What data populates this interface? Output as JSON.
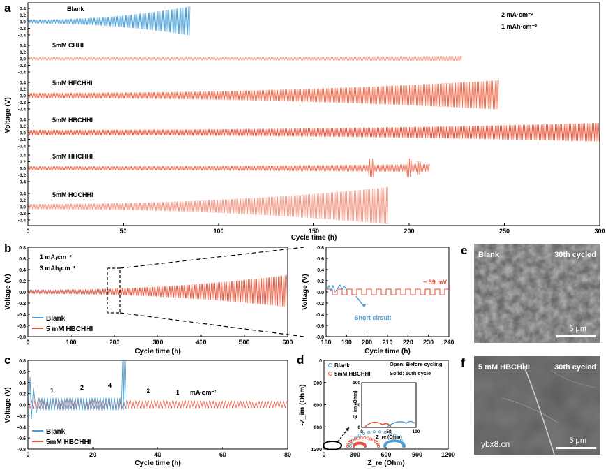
{
  "colors": {
    "blue": "#4a9fd6",
    "red": "#e8543a",
    "pink": "#f08a72",
    "salmon": "#ee7054"
  },
  "panels": {
    "a": {
      "letter": "a",
      "ylabel": "Voltage (V)",
      "xlabel": "Cycle time (h)",
      "note1": "2 mA·cm⁻²",
      "note2": "1 mAh·cm⁻²",
      "traces": [
        {
          "label": "Blank",
          "end": 85,
          "color": "#4a9fd6"
        },
        {
          "label": "5mM CHHI",
          "end": 228,
          "color": "#f2a08a"
        },
        {
          "label": "5mM HECHHI",
          "end": 247,
          "color": "#ee6a4c"
        },
        {
          "label": "5mM HBCHHI",
          "end": 300,
          "color": "#e8543a"
        },
        {
          "label": "5mM HHCHHI",
          "end": 211,
          "color": "#ee7054"
        },
        {
          "label": "5mM HOCHHI",
          "end": 189,
          "color": "#f29582"
        }
      ],
      "yticks": [
        "0.4",
        "0.2",
        "0.0",
        "-0.2",
        "-0.4"
      ],
      "xticks": [
        "0",
        "50",
        "100",
        "150",
        "200",
        "250",
        "300"
      ]
    },
    "b": {
      "letter": "b",
      "ylabel": "Voltage (V)",
      "xlabel": "Cycle time (h)",
      "note1": "1 mA¡cm⁻²",
      "note2": "3 mAh¡cm⁻²",
      "legend": [
        "Blank",
        "5 mM HBCHHI"
      ],
      "xticks": [
        "0",
        "100",
        "200",
        "300",
        "400",
        "500",
        "600"
      ],
      "yticks": [
        "0.8",
        "0.6",
        "0.4",
        "0.2",
        "0.0",
        "-0.2",
        "-0.4",
        "-0.6",
        "-0.8"
      ]
    },
    "b_inset": {
      "ylabel": "Voltage (V)",
      "xlabel": "Cycle time (h)",
      "annotation": "~ 59 mV",
      "short_circuit": "Short circuit",
      "xticks": [
        "180",
        "190",
        "200",
        "210",
        "220",
        "230",
        "240"
      ],
      "yticks": [
        "0.8",
        "0.6",
        "0.4",
        "0.2",
        "0.0",
        "-0.2",
        "-0.4",
        "-0.6",
        "-0.8"
      ]
    },
    "c": {
      "letter": "c",
      "ylabel": "Voltage (V)",
      "xlabel": "Cycle time (h)",
      "legend": [
        "Blank",
        "5mM HBCHHI"
      ],
      "rate_labels": [
        "1",
        "2",
        "4",
        "2",
        "1",
        "mA·cm⁻²"
      ],
      "xticks": [
        "0",
        "20",
        "40",
        "60",
        "80"
      ],
      "yticks": [
        "0.8",
        "0.6",
        "0.4",
        "0.2",
        "0.0",
        "-0.2",
        "-0.4",
        "-0.6",
        "-0.8"
      ]
    },
    "d": {
      "letter": "d",
      "ylabel": "-Z_im (Ohm)",
      "xlabel": "Z_re (Ohm)",
      "legend": [
        "Blank",
        "5mM HBCHHI"
      ],
      "note1": "Open: Before cycling",
      "note2": "Solid: 50th cycle",
      "xticks": [
        "0",
        "300",
        "600",
        "900",
        "1200"
      ],
      "yticks": [
        "0",
        "300",
        "600",
        "900",
        "1200"
      ],
      "inset_xticks": [
        "0",
        "50",
        "100"
      ],
      "inset_yticks": [
        "0",
        "50",
        "100"
      ],
      "inset_xlabel": "Z_re (Ohm)",
      "inset_ylabel": "-Z_im (Ohm)"
    },
    "e": {
      "letter": "e",
      "label": "Blank",
      "cycled": "30th cycled",
      "scale": "5 μm"
    },
    "f": {
      "letter": "f",
      "label": "5 mM HBCHHI",
      "cycled": "30th cycled",
      "scale": "5 μm",
      "watermark": "ybx8.cn"
    }
  },
  "chart_data": [
    {
      "type": "line",
      "title": "",
      "xlabel": "Cycle time (h)",
      "ylabel": "Voltage (V)",
      "xlim": [
        0,
        300
      ],
      "ylim": [
        -0.4,
        0.4
      ],
      "series": [
        {
          "name": "Blank",
          "end_h": 85
        },
        {
          "name": "5mM CHHI",
          "end_h": 228
        },
        {
          "name": "5mM HECHHI",
          "end_h": 247
        },
        {
          "name": "5mM HBCHHI",
          "end_h": 300
        },
        {
          "name": "5mM HHCHHI",
          "end_h": 211
        },
        {
          "name": "5mM HOCHHI",
          "end_h": 189
        }
      ]
    },
    {
      "type": "line",
      "xlabel": "Cycle time (h)",
      "ylabel": "Voltage (V)",
      "xlim": [
        0,
        600
      ],
      "ylim": [
        -0.8,
        0.8
      ],
      "series": [
        {
          "name": "Blank",
          "end_h": 190
        },
        {
          "name": "5 mM HBCHHI",
          "end_h": 600
        }
      ]
    },
    {
      "type": "line",
      "xlabel": "Cycle time (h)",
      "ylabel": "Voltage (V)",
      "xlim": [
        0,
        80
      ],
      "ylim": [
        -0.8,
        0.8
      ],
      "series": [
        {
          "name": "Blank",
          "end_h": 30
        },
        {
          "name": "5mM HBCHHI",
          "end_h": 80
        }
      ]
    },
    {
      "type": "scatter",
      "xlabel": "Z_re (Ohm)",
      "ylabel": "-Z_im (Ohm)",
      "xlim": [
        0,
        1200
      ],
      "ylim": [
        0,
        1200
      ],
      "series": [
        {
          "name": "Blank"
        },
        {
          "name": "5mM HBCHHI"
        }
      ]
    }
  ]
}
